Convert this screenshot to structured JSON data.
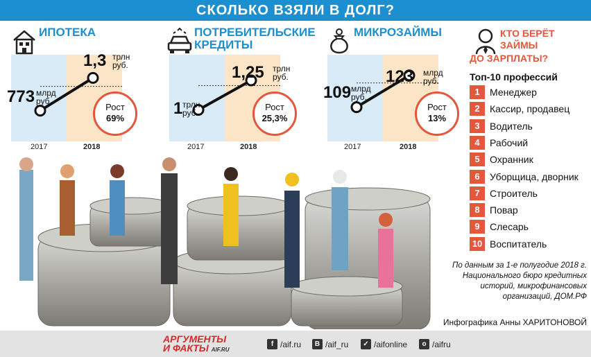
{
  "banner_title": "СКОЛЬКО ВЗЯЛИ В ДОЛГ?",
  "chart_data": [
    {
      "type": "line",
      "title": "ИПОТЕКА",
      "x": [
        "2017",
        "2018"
      ],
      "series": [
        {
          "values": [
            0.773,
            1.3
          ]
        }
      ],
      "units": "трлн руб.",
      "value_labels": [
        {
          "value": "773",
          "unit": "млрд руб."
        },
        {
          "value": "1,3",
          "unit": "трлн руб."
        }
      ],
      "growth": {
        "label": "Рост",
        "value": "69%"
      }
    },
    {
      "type": "line",
      "title": "ПОТРЕБИТЕЛЬСКИЕ КРЕДИТЫ",
      "x": [
        "2017",
        "2018"
      ],
      "series": [
        {
          "values": [
            1,
            1.25
          ]
        }
      ],
      "units": "трлн руб.",
      "value_labels": [
        {
          "value": "1",
          "unit": "трлн руб."
        },
        {
          "value": "1,25",
          "unit": "трлн руб."
        }
      ],
      "growth": {
        "label": "Рост",
        "value": "25,3%"
      }
    },
    {
      "type": "line",
      "title": "МИКРОЗАЙМЫ",
      "x": [
        "2017",
        "2018"
      ],
      "series": [
        {
          "values": [
            109,
            123
          ]
        }
      ],
      "units": "млрд руб.",
      "value_labels": [
        {
          "value": "109",
          "unit": "млрд руб."
        },
        {
          "value": "123",
          "unit": "млрд руб."
        }
      ],
      "growth": {
        "label": "Рост",
        "value": "13%"
      }
    }
  ],
  "panels": [
    {
      "title_1": "ИПОТЕКА",
      "title_2": "",
      "v17": "773",
      "u17a": "млрд",
      "u17b": "руб.",
      "v18": "1,3",
      "u18a": "трлн",
      "u18b": "руб.",
      "y17": "2017",
      "y18": "2018",
      "growth_label": "Рост",
      "growth_value": "69%"
    },
    {
      "title_1": "ПОТРЕБИТЕЛЬСКИЕ",
      "title_2": "КРЕДИТЫ",
      "v17": "1",
      "u17a": "трлн",
      "u17b": "руб.",
      "v18": "1,25",
      "u18a": "трлн",
      "u18b": "руб.",
      "y17": "2017",
      "y18": "2018",
      "growth_label": "Рост",
      "growth_value": "25,3%"
    },
    {
      "title_1": "МИКРОЗАЙМЫ",
      "title_2": "",
      "v17": "109",
      "u17a": "млрд",
      "u17b": "руб.",
      "v18": "123",
      "u18a": "млрд",
      "u18b": "руб.",
      "y17": "2017",
      "y18": "2018",
      "growth_label": "Рост",
      "growth_value": "13%"
    }
  ],
  "professions": {
    "title_1": "КТО БЕРЁТ",
    "title_2": "ЗАЙМЫ",
    "title_3": "ДО ЗАРПЛАТЫ?",
    "subtitle": "Топ-10 профессий",
    "items": [
      {
        "n": "1",
        "name": "Менеджер"
      },
      {
        "n": "2",
        "name": "Кассир, продавец"
      },
      {
        "n": "3",
        "name": "Водитель"
      },
      {
        "n": "4",
        "name": "Рабочий"
      },
      {
        "n": "5",
        "name": "Охранник"
      },
      {
        "n": "6",
        "name": "Уборщица, дворник"
      },
      {
        "n": "7",
        "name": "Строитель"
      },
      {
        "n": "8",
        "name": "Повар"
      },
      {
        "n": "9",
        "name": "Слесарь"
      },
      {
        "n": "10",
        "name": "Воспитатель"
      }
    ]
  },
  "source": "По данным за 1-е полугодие 2018 г. Национального бюро кредитных историй, микрофинансовых организаций, ДОМ.РФ",
  "credit": "Инфографика Анны ХАРИТОНОВОЙ",
  "footer": {
    "logo_1": "АРГУМЕНТЫ",
    "logo_2": "И ФАКТЫ",
    "logo_site": "AIF.RU",
    "social": [
      {
        "icon": "facebook-icon",
        "glyph": "f",
        "label": "/aif.ru"
      },
      {
        "icon": "vk-icon",
        "glyph": "В",
        "label": "/aif_ru"
      },
      {
        "icon": "twitter-icon",
        "glyph": "✓",
        "label": "/aifonline"
      },
      {
        "icon": "odnoklassniki-icon",
        "glyph": "о",
        "label": "/aifru"
      }
    ]
  },
  "colors": {
    "accent_blue": "#1b8fd0",
    "accent_red": "#e4573c",
    "col_2017": "#d9ebf7",
    "col_2018": "#fbe5c6"
  }
}
